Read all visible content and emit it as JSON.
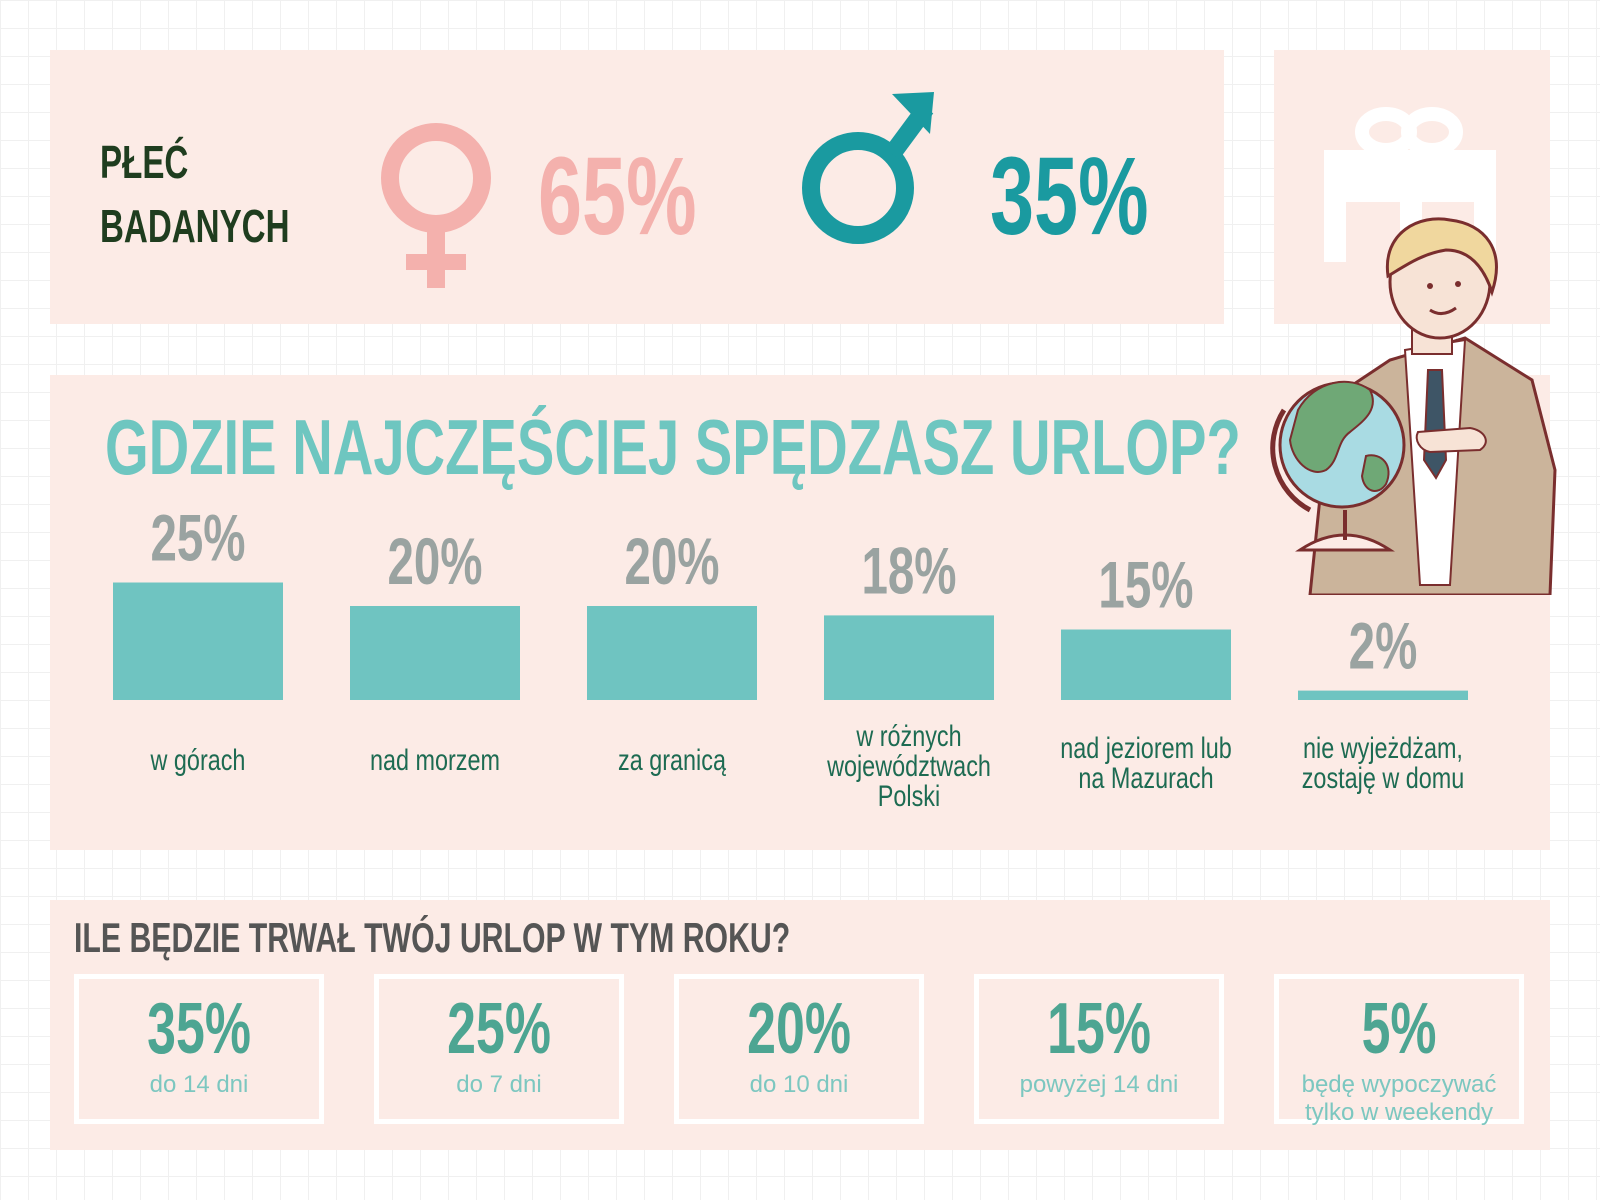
{
  "gender": {
    "title_line1": "PŁEĆ",
    "title_line2": "BADANYCH",
    "female_pct": "65%",
    "male_pct": "35%",
    "female_icon": "female-symbol-icon",
    "male_icon": "male-symbol-icon",
    "female_color": "#f4b1ad",
    "male_color": "#1a9aa0"
  },
  "decor": {
    "gift_icon": "gift-icon",
    "illustration": "man-holding-globe-illustration"
  },
  "destination": {
    "title": "GDZIE NAJCZĘŚCIEJ SPĘDZASZ URLOP?"
  },
  "chart_data": {
    "type": "bar",
    "title": "GDZIE NAJCZĘŚCIEJ SPĘDZASZ URLOP?",
    "categories": [
      "w górach",
      "nad morzem",
      "za granicą",
      "w różnych województwach Polski",
      "nad jeziorem lub na Mazurach",
      "nie wyjeżdżam, zostaję w domu"
    ],
    "category_lines": [
      [
        "w górach"
      ],
      [
        "nad morzem"
      ],
      [
        "za granicą"
      ],
      [
        "w różnych",
        "województwach",
        "Polski"
      ],
      [
        "nad jeziorem lub",
        "na Mazurach"
      ],
      [
        "nie wyjeżdżam,",
        "zostaję w domu"
      ]
    ],
    "values": [
      25,
      20,
      20,
      18,
      15,
      2
    ],
    "value_labels": [
      "25%",
      "20%",
      "20%",
      "18%",
      "15%",
      "2%"
    ],
    "unit": "%",
    "bar_color": "#6fc4c1",
    "value_label_color": "#9aa3a1",
    "category_label_color": "#1d6b52"
  },
  "duration": {
    "title": "ILE BĘDZIE TRWAŁ TWÓJ URLOP W TYM ROKU?",
    "items": [
      {
        "value": "35%",
        "label": "do 14 dni"
      },
      {
        "value": "25%",
        "label": "do 7 dni"
      },
      {
        "value": "20%",
        "label": "do 10 dni"
      },
      {
        "value": "15%",
        "label": "powyżej 14 dni"
      },
      {
        "value": "5%",
        "label": "będę wypoczywać tylko w weekendy"
      }
    ]
  }
}
